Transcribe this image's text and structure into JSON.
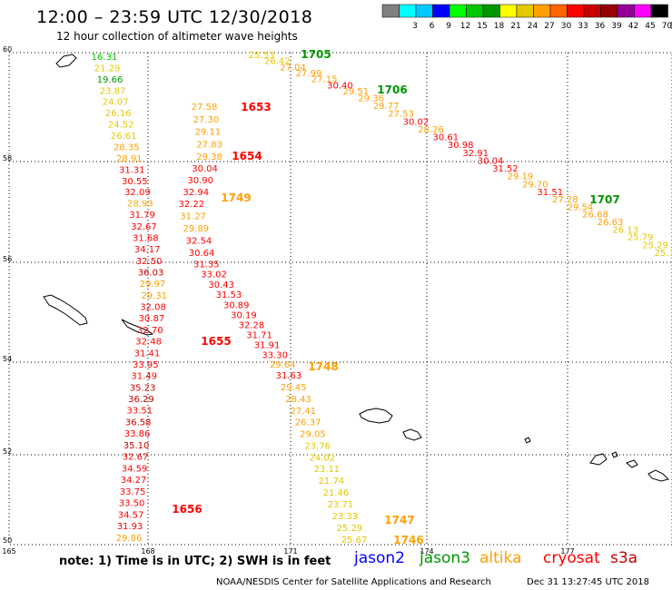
{
  "header": {
    "title": "12:00 – 23:59 UTC 12/30/2018",
    "subtitle": "12 hour collection of altimeter wave heights"
  },
  "legend": {
    "unit": "(ft)",
    "swatches": [
      {
        "color": "#808080",
        "label": ""
      },
      {
        "color": "#00ffff",
        "label": "3"
      },
      {
        "color": "#00c8ff",
        "label": "6"
      },
      {
        "color": "#0000ff",
        "label": "9"
      },
      {
        "color": "#00ff00",
        "label": "12"
      },
      {
        "color": "#00c800",
        "label": "15"
      },
      {
        "color": "#009600",
        "label": "18"
      },
      {
        "color": "#ffff00",
        "label": "21"
      },
      {
        "color": "#e6c800",
        "label": "24"
      },
      {
        "color": "#ffa000",
        "label": "27"
      },
      {
        "color": "#ff6400",
        "label": "30"
      },
      {
        "color": "#ff0000",
        "label": "33"
      },
      {
        "color": "#c80000",
        "label": "36"
      },
      {
        "color": "#960000",
        "label": "39"
      },
      {
        "color": "#960096",
        "label": "42"
      },
      {
        "color": "#ff00ff",
        "label": "45"
      },
      {
        "color": "#000000",
        "label": "70"
      }
    ]
  },
  "axes": {
    "lat_ticks": [
      "60",
      "58",
      "56",
      "54",
      "52",
      "50"
    ],
    "lon_ticks": [
      "165",
      "168",
      "171",
      "174",
      "177"
    ]
  },
  "tracks": [
    {
      "id": "west",
      "color_key": "cryosat",
      "points": [
        {
          "v": "16.31",
          "c": "#00c800"
        },
        {
          "v": "21.29",
          "c": "#e6c800"
        },
        {
          "v": "19.66",
          "c": "#009600"
        },
        {
          "v": "23.87",
          "c": "#e6c800"
        },
        {
          "v": "24.07",
          "c": "#e6c800"
        },
        {
          "v": "26.16",
          "c": "#e6c800"
        },
        {
          "v": "24.52",
          "c": "#e6c800"
        },
        {
          "v": "26.61",
          "c": "#e6c800"
        },
        {
          "v": "28.35",
          "c": "#ffa000"
        },
        {
          "v": "28.91",
          "c": "#ffa000"
        },
        {
          "v": "31.31",
          "c": "#ff0000"
        },
        {
          "v": "30.55",
          "c": "#ff0000"
        },
        {
          "v": "32.09",
          "c": "#ff0000"
        },
        {
          "v": "28.93",
          "c": "#ffa000"
        },
        {
          "v": "31.79",
          "c": "#ff0000"
        },
        {
          "v": "32.67",
          "c": "#ff0000"
        },
        {
          "v": "31.68",
          "c": "#ff0000"
        },
        {
          "v": "34.17",
          "c": "#ff0000"
        },
        {
          "v": "32.50",
          "c": "#ff0000"
        },
        {
          "v": "36.03",
          "c": "#c80000"
        },
        {
          "v": "29.97",
          "c": "#ffa000"
        },
        {
          "v": "29.31",
          "c": "#ffa000"
        },
        {
          "v": "32.08",
          "c": "#ff0000"
        },
        {
          "v": "30.87",
          "c": "#ff0000"
        },
        {
          "v": "32.70",
          "c": "#ff0000"
        },
        {
          "v": "32.48",
          "c": "#ff0000"
        },
        {
          "v": "31.41",
          "c": "#ff0000"
        },
        {
          "v": "33.95",
          "c": "#ff0000"
        },
        {
          "v": "31.49",
          "c": "#ff0000"
        },
        {
          "v": "35.23",
          "c": "#c80000"
        },
        {
          "v": "36.29",
          "c": "#c80000"
        },
        {
          "v": "33.51",
          "c": "#ff0000"
        },
        {
          "v": "36.58",
          "c": "#c80000"
        },
        {
          "v": "33.86",
          "c": "#ff0000"
        },
        {
          "v": "35.10",
          "c": "#c80000"
        },
        {
          "v": "32.67",
          "c": "#ff0000"
        },
        {
          "v": "34.59",
          "c": "#ff0000"
        },
        {
          "v": "34.27",
          "c": "#ff0000"
        },
        {
          "v": "33.75",
          "c": "#ff0000"
        },
        {
          "v": "33.50",
          "c": "#ff0000"
        },
        {
          "v": "34.57",
          "c": "#ff0000"
        },
        {
          "v": "31.93",
          "c": "#ff0000"
        },
        {
          "v": "29.86",
          "c": "#ffa000"
        }
      ]
    },
    {
      "id": "middle",
      "points": [
        {
          "v": "27.58",
          "c": "#ffa000"
        },
        {
          "v": "27.30",
          "c": "#ffa000"
        },
        {
          "v": "29.11",
          "c": "#ffa000"
        },
        {
          "v": "27.83",
          "c": "#ffa000"
        },
        {
          "v": "29.38",
          "c": "#ffa000"
        },
        {
          "v": "30.04",
          "c": "#ff0000"
        },
        {
          "v": "30.90",
          "c": "#ff0000"
        },
        {
          "v": "32.94",
          "c": "#ff0000"
        },
        {
          "v": "32.22",
          "c": "#ff0000"
        },
        {
          "v": "31.27",
          "c": "#ffa000"
        },
        {
          "v": "29.89",
          "c": "#ffa000"
        },
        {
          "v": "32.54",
          "c": "#ff0000"
        },
        {
          "v": "30.64",
          "c": "#ff0000"
        },
        {
          "v": "31.35",
          "c": "#ff0000"
        },
        {
          "v": "33.02",
          "c": "#ff0000"
        },
        {
          "v": "30.43",
          "c": "#ff0000"
        },
        {
          "v": "31.53",
          "c": "#ff0000"
        },
        {
          "v": "30.89",
          "c": "#ff0000"
        },
        {
          "v": "30.19",
          "c": "#ff0000"
        },
        {
          "v": "32.28",
          "c": "#ff0000"
        },
        {
          "v": "31.71",
          "c": "#ff0000"
        },
        {
          "v": "31.91",
          "c": "#ff0000"
        },
        {
          "v": "33.30",
          "c": "#ff0000"
        },
        {
          "v": "29.64",
          "c": "#ffa000"
        },
        {
          "v": "31.63",
          "c": "#ff0000"
        },
        {
          "v": "29.45",
          "c": "#ffa000"
        },
        {
          "v": "28.43",
          "c": "#ffa000"
        },
        {
          "v": "27.41",
          "c": "#ffa000"
        },
        {
          "v": "26.37",
          "c": "#ffa000"
        },
        {
          "v": "29.05",
          "c": "#ffa000"
        },
        {
          "v": "23.76",
          "c": "#e6c800"
        },
        {
          "v": "24.02",
          "c": "#e6c800"
        },
        {
          "v": "23.11",
          "c": "#e6c800"
        },
        {
          "v": "21.74",
          "c": "#e6c800"
        },
        {
          "v": "21.46",
          "c": "#e6c800"
        },
        {
          "v": "23.71",
          "c": "#e6c800"
        },
        {
          "v": "23.33",
          "c": "#e6c800"
        },
        {
          "v": "25.29",
          "c": "#e6c800"
        },
        {
          "v": "25.67",
          "c": "#e6c800"
        }
      ]
    },
    {
      "id": "east",
      "points": [
        {
          "v": "25.53",
          "c": "#e6c800"
        },
        {
          "v": "26.42",
          "c": "#e6c800"
        },
        {
          "v": "27.04",
          "c": "#ffa000"
        },
        {
          "v": "27.99",
          "c": "#ffa000"
        },
        {
          "v": "27.15",
          "c": "#ffa000"
        },
        {
          "v": "30.40",
          "c": "#ff0000"
        },
        {
          "v": "29.51",
          "c": "#ffa000"
        },
        {
          "v": "29.36",
          "c": "#ffa000"
        },
        {
          "v": "29.77",
          "c": "#ffa000"
        },
        {
          "v": "27.53",
          "c": "#ffa000"
        },
        {
          "v": "30.02",
          "c": "#ff0000"
        },
        {
          "v": "28.26",
          "c": "#ffa000"
        },
        {
          "v": "30.61",
          "c": "#ff0000"
        },
        {
          "v": "30.98",
          "c": "#ff0000"
        },
        {
          "v": "32.91",
          "c": "#ff0000"
        },
        {
          "v": "30.04",
          "c": "#ff0000"
        },
        {
          "v": "31.52",
          "c": "#ff0000"
        },
        {
          "v": "29.19",
          "c": "#ffa000"
        },
        {
          "v": "29.70",
          "c": "#ffa000"
        },
        {
          "v": "31.51",
          "c": "#ff0000"
        },
        {
          "v": "27.28",
          "c": "#ffa000"
        },
        {
          "v": "29.54",
          "c": "#ffa000"
        },
        {
          "v": "26.68",
          "c": "#ffa000"
        },
        {
          "v": "26.63",
          "c": "#ffa000"
        },
        {
          "v": "26.13",
          "c": "#e6c800"
        },
        {
          "v": "25.79",
          "c": "#e6c800"
        },
        {
          "v": "25.29",
          "c": "#e6c800"
        },
        {
          "v": "25.10",
          "c": "#e6c800"
        }
      ]
    }
  ],
  "time_labels": [
    {
      "t": "1705",
      "c": "#009600"
    },
    {
      "t": "1706",
      "c": "#009600"
    },
    {
      "t": "1707",
      "c": "#009600"
    },
    {
      "t": "1653",
      "c": "#ff0000"
    },
    {
      "t": "1654",
      "c": "#ff0000"
    },
    {
      "t": "1655",
      "c": "#ff0000"
    },
    {
      "t": "1656",
      "c": "#ff0000"
    },
    {
      "t": "1749",
      "c": "#ffa000"
    },
    {
      "t": "1748",
      "c": "#ffa000"
    },
    {
      "t": "1747",
      "c": "#ffa000"
    },
    {
      "t": "1746",
      "c": "#ffa000"
    }
  ],
  "footer": {
    "note": "note: 1) Time is in UTC; 2) SWH is in feet",
    "satellites": [
      {
        "name": "jason2",
        "color": "#0000ff"
      },
      {
        "name": "jason3",
        "color": "#009600"
      },
      {
        "name": "altika",
        "color": "#ffa000"
      },
      {
        "name": "cryosat",
        "color": "#ff0000"
      },
      {
        "name": "s3a",
        "color": "#c80000"
      }
    ],
    "credit": "NOAA/NESDIS Center for Satellite Applications and Research",
    "date": "Dec 31 13:27:45 UTC 2018"
  }
}
